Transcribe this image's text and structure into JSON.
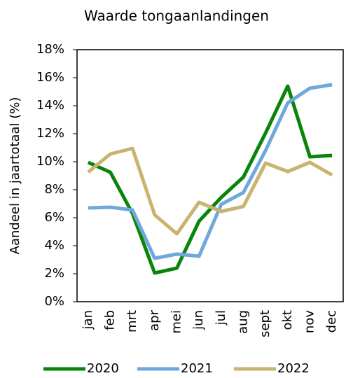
{
  "chart_data": {
    "type": "line",
    "title": "Waarde tongaanlandingen",
    "y_label": "Aandeel in jaartotaal (%)",
    "categories": [
      "jan",
      "feb",
      "mrt",
      "apr",
      "mei",
      "jun",
      "jul",
      "aug",
      "sept",
      "okt",
      "nov",
      "dec"
    ],
    "series": [
      {
        "name": "2020",
        "color": "#0a840a",
        "values": [
          9.95,
          9.25,
          6.3,
          2.05,
          2.4,
          5.75,
          7.45,
          8.9,
          12.05,
          15.4,
          10.35,
          10.45
        ]
      },
      {
        "name": "2021",
        "color": "#6fa8dc",
        "values": [
          6.7,
          6.75,
          6.55,
          3.1,
          3.4,
          3.25,
          6.95,
          7.8,
          10.8,
          14.2,
          15.25,
          15.5
        ]
      },
      {
        "name": "2022",
        "color": "#c8b470",
        "values": [
          9.25,
          10.55,
          10.95,
          6.2,
          4.85,
          7.1,
          6.45,
          6.8,
          9.9,
          9.3,
          9.95,
          9.05
        ]
      }
    ],
    "ylim": [
      0,
      18
    ],
    "yticks": [
      {
        "value": 0,
        "label": "0%"
      },
      {
        "value": 2,
        "label": "2%"
      },
      {
        "value": 4,
        "label": "4%"
      },
      {
        "value": 6,
        "label": "6%"
      },
      {
        "value": 8,
        "label": "8%"
      },
      {
        "value": 10,
        "label": "10%"
      },
      {
        "value": 12,
        "label": "12%"
      },
      {
        "value": 14,
        "label": "14%"
      },
      {
        "value": 16,
        "label": "16%"
      },
      {
        "value": 18,
        "label": "18%"
      }
    ],
    "grid": false,
    "legend": "bottom"
  }
}
